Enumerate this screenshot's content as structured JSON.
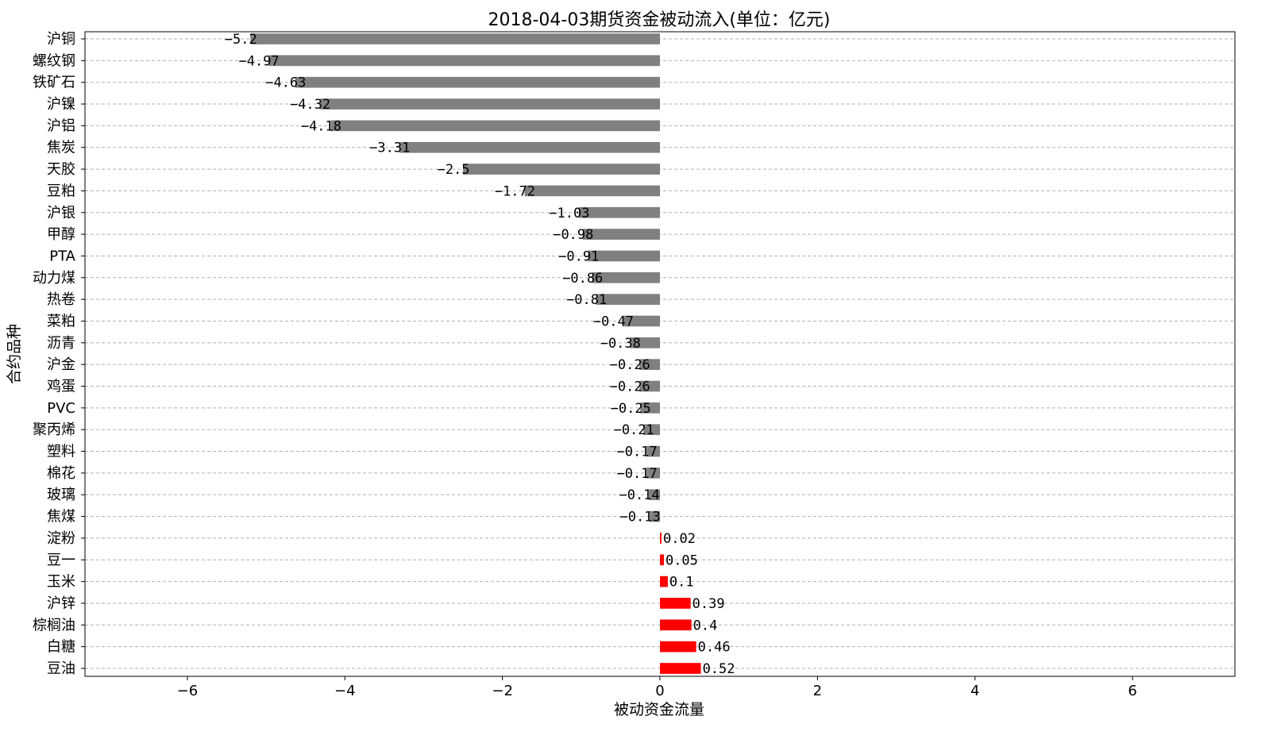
{
  "chart_data": {
    "type": "bar",
    "orientation": "horizontal",
    "title": "2018-04-03期货资金被动流入(单位：亿元)",
    "xlabel": "被动资金流量",
    "ylabel": "合约品种",
    "xlim": [
      -7.3,
      7.3
    ],
    "xticks": [
      -6,
      -4,
      -2,
      0,
      2,
      4,
      6
    ],
    "xtick_labels": [
      "−6",
      "−4",
      "−2",
      "0",
      "2",
      "4",
      "6"
    ],
    "grid": "horizontal dashed",
    "colors": {
      "negative": "#808080",
      "positive": "#ff0000"
    },
    "categories": [
      "沪铜",
      "螺纹钢",
      "铁矿石",
      "沪镍",
      "沪铝",
      "焦炭",
      "天胶",
      "豆粕",
      "沪银",
      "甲醇",
      "PTA",
      "动力煤",
      "热卷",
      "菜粕",
      "沥青",
      "沪金",
      "鸡蛋",
      "PVC",
      "聚丙烯",
      "塑料",
      "棉花",
      "玻璃",
      "焦煤",
      "淀粉",
      "豆一",
      "玉米",
      "沪锌",
      "棕榈油",
      "白糖",
      "豆油"
    ],
    "values": [
      -5.2,
      -4.97,
      -4.63,
      -4.32,
      -4.18,
      -3.31,
      -2.5,
      -1.72,
      -1.03,
      -0.98,
      -0.91,
      -0.86,
      -0.81,
      -0.47,
      -0.38,
      -0.26,
      -0.26,
      -0.25,
      -0.21,
      -0.17,
      -0.17,
      -0.14,
      -0.13,
      0.02,
      0.05,
      0.1,
      0.39,
      0.4,
      0.46,
      0.52
    ],
    "value_labels": [
      "−5.2",
      "−4.97",
      "−4.63",
      "−4.32",
      "−4.18",
      "−3.31",
      "−2.5",
      "−1.72",
      "−1.03",
      "−0.98",
      "−0.91",
      "−0.86",
      "−0.81",
      "−0.47",
      "−0.38",
      "−0.26",
      "−0.26",
      "−0.25",
      "−0.21",
      "−0.17",
      "−0.17",
      "−0.14",
      "−0.13",
      "0.02",
      "0.05",
      "0.1",
      "0.39",
      "0.4",
      "0.46",
      "0.52"
    ]
  }
}
